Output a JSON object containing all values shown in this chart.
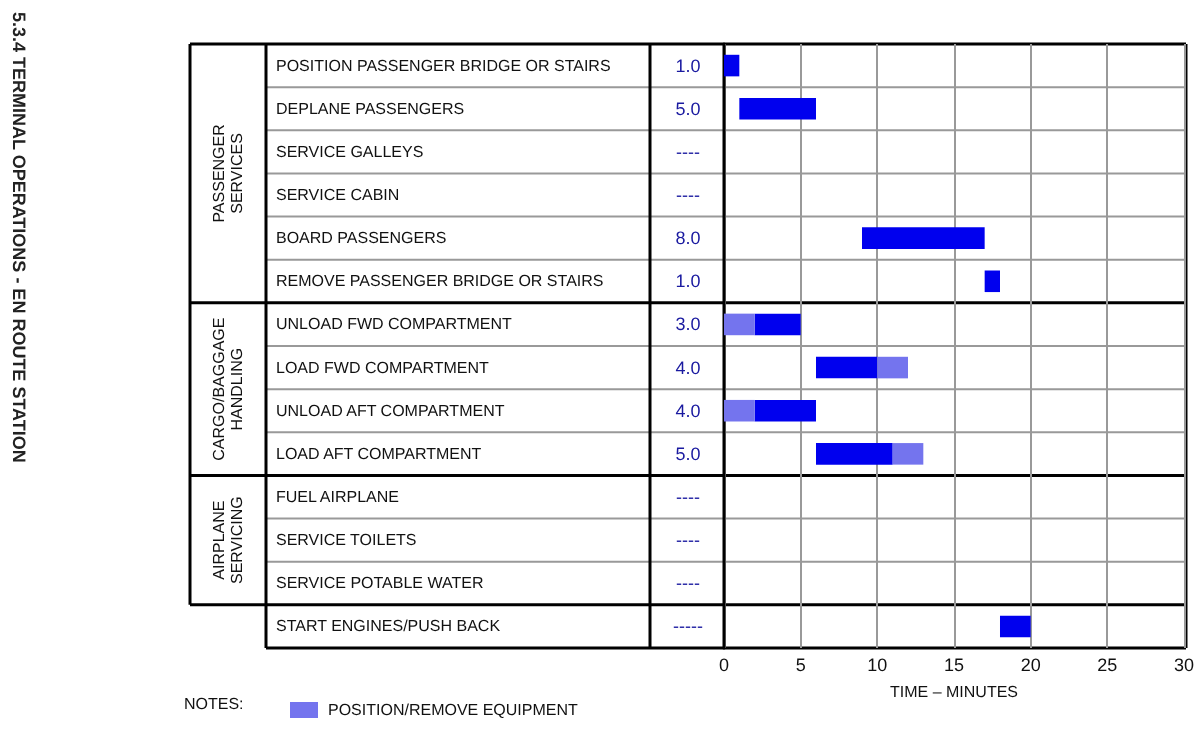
{
  "chart_data": {
    "type": "bar",
    "orientation": "horizontal",
    "title": "5.3.4 TERMINAL OPERATIONS - EN ROUTE STATION",
    "xlabel": "TIME – MINUTES",
    "legend_title": "NOTES:",
    "legend": "bottom left",
    "grid": true,
    "categories": [
      "POSITION PASSENGER BRIDGE OR STAIRS",
      "DEPLANE PASSENGERS",
      "SERVICE GALLEYS",
      "SERVICE CABIN",
      "BOARD PASSENGERS",
      "REMOVE PASSENGER BRIDGE OR STAIRS",
      "UNLOAD FWD COMPARTMENT",
      "LOAD FWD COMPARTMENT",
      "UNLOAD AFT COMPARTMENT",
      "LOAD AFT COMPARTMENT",
      "FUEL AIRPLANE",
      "SERVICE TOILETS",
      "SERVICE POTABLE WATER",
      "START ENGINES/PUSH BACK"
    ],
    "annotations": [
      "PASSENGER SERVICES",
      "CARGO/BAGGAGE HANDLING",
      "AIRPLANE SERVICING"
    ],
    "series": [
      {
        "color": "#0000ee",
        "values": [
          1,
          5,
          null,
          null,
          8,
          1,
          3,
          4,
          4,
          5,
          null,
          null,
          null,
          2
        ],
        "base": [
          0,
          1,
          null,
          null,
          9,
          17,
          2,
          6,
          2,
          6,
          null,
          null,
          null,
          18
        ],
        "value_labels": [
          "1.0",
          "5.0",
          "----",
          "----",
          "8.0",
          "1.0",
          "3.0",
          "4.0",
          "4.0",
          "5.0",
          "----",
          "----",
          "----",
          "-----"
        ]
      },
      {
        "name": "POSITION/REMOVE EQUIPMENT",
        "color": "#7474ee",
        "values": [
          null,
          null,
          null,
          null,
          null,
          null,
          2,
          2,
          2,
          2,
          null,
          null,
          null,
          null
        ],
        "base": [
          null,
          null,
          null,
          null,
          null,
          null,
          0,
          10,
          0,
          11,
          null,
          null,
          null,
          null
        ]
      }
    ],
    "xlim": [
      0,
      30
    ],
    "xticks": [
      0,
      5,
      10,
      15,
      20,
      25,
      30
    ]
  }
}
